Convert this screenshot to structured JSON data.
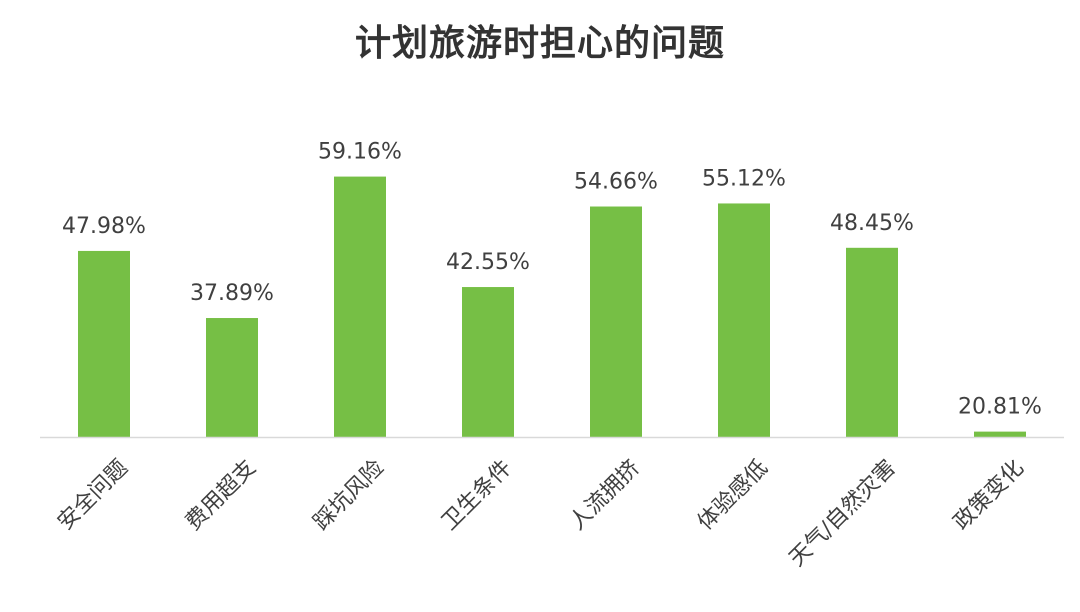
{
  "chart_data": {
    "type": "bar",
    "title": "计划旅游时担心的问题",
    "categories": [
      "安全问题",
      "费用超支",
      "踩坑风险",
      "卫生条件",
      "人流拥挤",
      "体验感低",
      "天气/自然灾害",
      "政策变化"
    ],
    "values": [
      47.98,
      37.89,
      59.16,
      42.55,
      54.66,
      55.12,
      48.45,
      20.81
    ],
    "data_labels": [
      "47.98%",
      "37.89%",
      "59.16%",
      "42.55%",
      "54.66%",
      "55.12%",
      "48.45%",
      "20.81%"
    ],
    "unit": "%",
    "ylim": [
      20,
      60
    ],
    "grid": false,
    "legend": "none",
    "bar_color": "#76BF45",
    "axis_color": "#D9D9D9"
  }
}
